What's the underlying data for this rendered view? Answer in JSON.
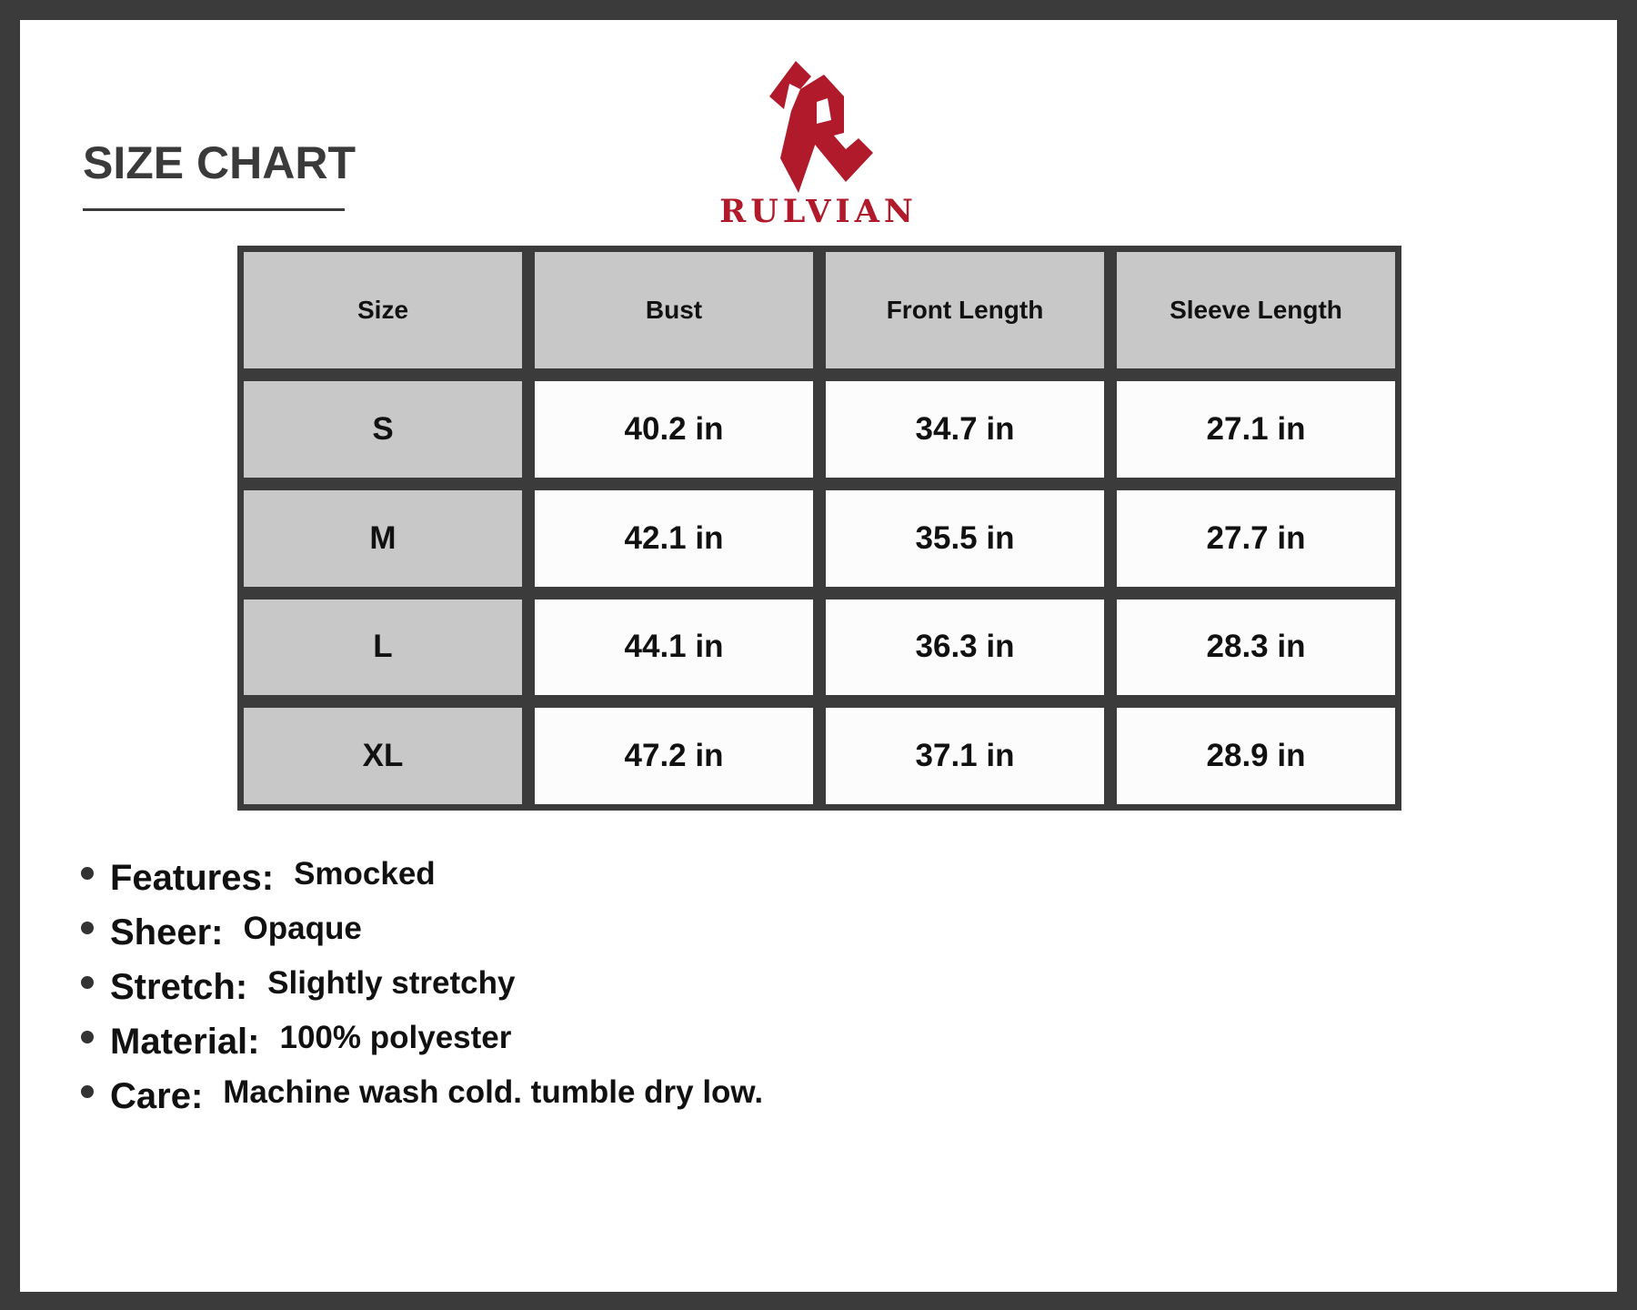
{
  "title": "SIZE CHART",
  "brand": {
    "name": "RULVIAN",
    "color": "#b01a2b"
  },
  "table": {
    "headers": [
      "Size",
      "Bust",
      "Front Length",
      "Sleeve Length"
    ],
    "rows": [
      [
        "S",
        "40.2 in",
        "34.7 in",
        "27.1 in"
      ],
      [
        "M",
        "42.1 in",
        "35.5 in",
        "27.7 in"
      ],
      [
        "L",
        "44.1 in",
        "36.3 in",
        "28.3 in"
      ],
      [
        "XL",
        "47.2 in",
        "37.1 in",
        "28.9 in"
      ]
    ]
  },
  "specs": [
    {
      "label": "Features:",
      "value": "Smocked"
    },
    {
      "label": "Sheer:",
      "value": "Opaque"
    },
    {
      "label": "Stretch:",
      "value": "Slightly stretchy"
    },
    {
      "label": "Material:",
      "value": "100% polyester"
    },
    {
      "label": "Care:",
      "value": "Machine wash cold. tumble dry low."
    }
  ]
}
